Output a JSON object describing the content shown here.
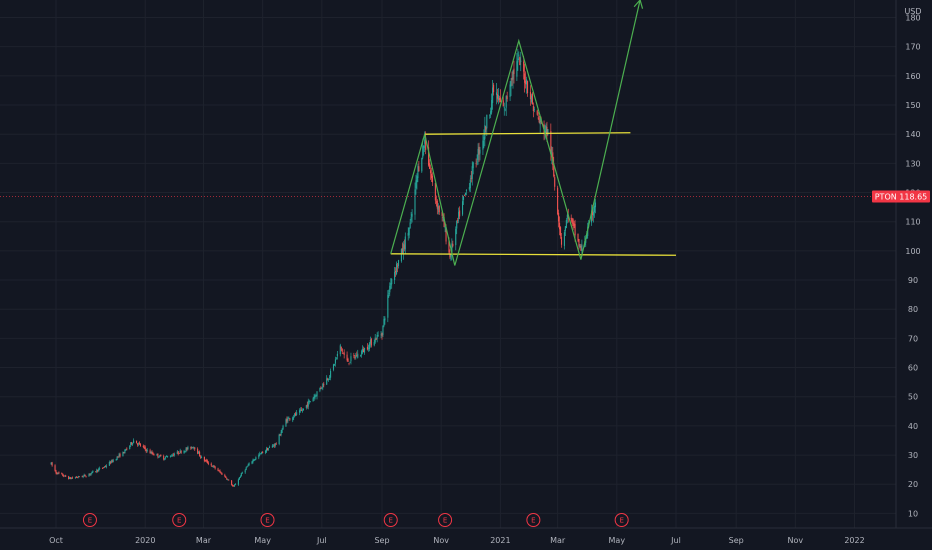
{
  "chart_data": {
    "type": "candlestick",
    "currency": "USD",
    "ticker": "PTON",
    "last_price": "118.65",
    "y_ticks": [
      10,
      20,
      30,
      40,
      50,
      60,
      70,
      80,
      90,
      100,
      110,
      120,
      130,
      140,
      150,
      160,
      170,
      180
    ],
    "ylim": [
      5,
      186
    ],
    "x_labels": [
      "Oct",
      "2020",
      "Mar",
      "May",
      "Jul",
      "Sep",
      "Nov",
      "2021",
      "Mar",
      "May",
      "Jul",
      "Sep",
      "Nov",
      "2022"
    ],
    "grid": true,
    "earnings_marker_label": "E",
    "earnings_dates": [
      "2019-11-05",
      "2020-02-05",
      "2020-05-06",
      "2020-09-10",
      "2020-11-05",
      "2021-02-04",
      "2021-05-06"
    ],
    "price_path": [
      [
        "2019-09-26",
        27
      ],
      [
        "2019-10-01",
        24
      ],
      [
        "2019-10-15",
        22
      ],
      [
        "2019-11-01",
        23
      ],
      [
        "2019-11-20",
        26
      ],
      [
        "2019-12-10",
        31
      ],
      [
        "2019-12-20",
        35
      ],
      [
        "2020-01-05",
        31
      ],
      [
        "2020-01-20",
        29
      ],
      [
        "2020-02-05",
        31
      ],
      [
        "2020-02-20",
        33
      ],
      [
        "2020-02-28",
        29
      ],
      [
        "2020-03-15",
        25
      ],
      [
        "2020-03-25",
        22
      ],
      [
        "2020-04-01",
        19
      ],
      [
        "2020-04-10",
        24
      ],
      [
        "2020-04-20",
        28
      ],
      [
        "2020-05-01",
        31
      ],
      [
        "2020-05-15",
        34
      ],
      [
        "2020-05-25",
        42
      ],
      [
        "2020-06-10",
        45
      ],
      [
        "2020-06-25",
        51
      ],
      [
        "2020-07-10",
        58
      ],
      [
        "2020-07-20",
        67
      ],
      [
        "2020-07-27",
        62
      ],
      [
        "2020-08-10",
        65
      ],
      [
        "2020-08-25",
        70
      ],
      [
        "2020-09-01",
        72
      ],
      [
        "2020-09-10",
        90
      ],
      [
        "2020-09-20",
        98
      ],
      [
        "2020-10-01",
        110
      ],
      [
        "2020-10-08",
        128
      ],
      [
        "2020-10-15",
        138
      ],
      [
        "2020-10-25",
        119
      ],
      [
        "2020-11-03",
        110
      ],
      [
        "2020-11-10",
        98
      ],
      [
        "2020-11-20",
        113
      ],
      [
        "2020-12-01",
        125
      ],
      [
        "2020-12-15",
        140
      ],
      [
        "2020-12-25",
        155
      ],
      [
        "2021-01-05",
        148
      ],
      [
        "2021-01-12",
        160
      ],
      [
        "2021-01-20",
        165
      ],
      [
        "2021-01-28",
        158
      ],
      [
        "2021-02-05",
        148
      ],
      [
        "2021-02-12",
        143
      ],
      [
        "2021-02-20",
        140
      ],
      [
        "2021-02-27",
        120
      ],
      [
        "2021-03-05",
        103
      ],
      [
        "2021-03-12",
        113
      ],
      [
        "2021-03-20",
        105
      ],
      [
        "2021-03-25",
        100
      ],
      [
        "2021-04-02",
        108
      ],
      [
        "2021-04-10",
        118.65
      ]
    ],
    "annotations": {
      "support_line": {
        "from": [
          "2020-09-10",
          99
        ],
        "to": [
          "2021-07-01",
          98.5
        ],
        "color": "#e8e03a"
      },
      "resistance_line": {
        "from": [
          "2020-10-15",
          140
        ],
        "to": [
          "2021-05-15",
          140.5
        ],
        "color": "#e8e03a"
      },
      "zigzag": {
        "points": [
          [
            "2020-09-10",
            99
          ],
          [
            "2020-10-15",
            140
          ],
          [
            "2020-11-15",
            95
          ],
          [
            "2021-01-20",
            172
          ],
          [
            "2021-03-25",
            97
          ],
          [
            "2021-05-25",
            186
          ]
        ],
        "color": "#4caf50"
      }
    },
    "colors": {
      "up": "#26a69a",
      "down": "#ef5350",
      "grid": "#1e222d",
      "background": "#131722",
      "text": "#b2b5be",
      "price_label": "#f23645"
    }
  }
}
